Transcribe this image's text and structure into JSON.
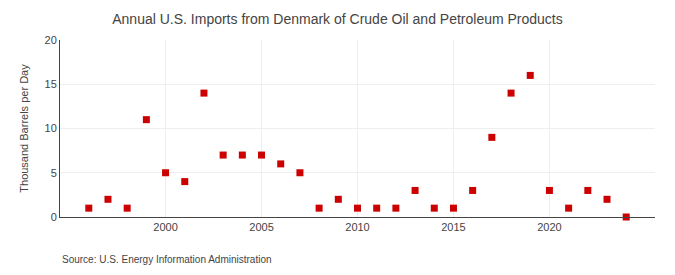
{
  "chart_data": {
    "type": "scatter",
    "title": "Annual U.S. Imports from Denmark of Crude Oil and Petroleum Products",
    "ylabel": "Thousand Barrels per Day",
    "annotations": [
      "Source: U.S. Energy Information Administration"
    ],
    "x": [
      1996,
      1997,
      1998,
      1999,
      2000,
      2001,
      2002,
      2003,
      2004,
      2005,
      2006,
      2007,
      2008,
      2009,
      2010,
      2011,
      2012,
      2013,
      2014,
      2015,
      2016,
      2017,
      2018,
      2019,
      2020,
      2021,
      2022,
      2023,
      2024
    ],
    "values": [
      1,
      2,
      1,
      11,
      5,
      4,
      14,
      7,
      7,
      7,
      6,
      5,
      1,
      2,
      1,
      1,
      1,
      3,
      1,
      1,
      3,
      9,
      14,
      16,
      3,
      1,
      3,
      2,
      0
    ],
    "color": "#cc0000",
    "marker": "square",
    "xlim": [
      1994.5,
      2025.5
    ],
    "xticks": [
      2000,
      2005,
      2010,
      2015,
      2020
    ],
    "ylim": [
      0,
      20
    ],
    "yticks": [
      0,
      5,
      10,
      15,
      20
    ],
    "grid": true
  }
}
